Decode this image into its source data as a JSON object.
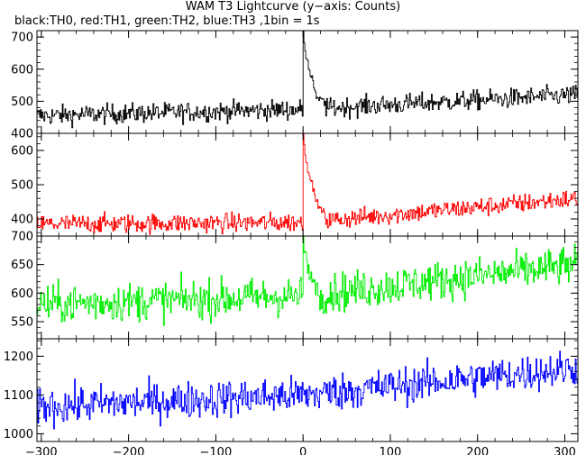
{
  "chart_data": {
    "type": "line",
    "title": "WAM T3 Lightcurve (y−axis: Counts)",
    "subtitle": "black:TH0, red:TH1, green:TH2, blue:TH3 ,1bin = 1s",
    "xlim": [
      -305,
      315
    ],
    "x_ticks": [
      -300,
      -200,
      -100,
      0,
      100,
      200,
      300
    ],
    "x_tick_labels": [
      "−300",
      "−200",
      "−100",
      "0",
      "100",
      "200",
      "300"
    ],
    "panels": [
      {
        "series": "TH0",
        "color": "#000000",
        "ylim": [
          400,
          720
        ],
        "y_ticks": [
          400,
          500,
          600,
          700
        ],
        "trend": [
          [
            -305,
            455
          ],
          [
            0,
            475
          ],
          [
            315,
            520
          ]
        ],
        "noise": 22,
        "peak": {
          "x": 0,
          "value": 720,
          "decay": [
            [
              0,
              720
            ],
            [
              3,
              650
            ],
            [
              8,
              590
            ],
            [
              15,
              520
            ],
            [
              25,
              490
            ]
          ]
        }
      },
      {
        "series": "TH1",
        "color": "#ff0000",
        "ylim": [
          350,
          650
        ],
        "y_ticks": [
          400,
          500,
          600
        ],
        "trend": [
          [
            -305,
            385
          ],
          [
            0,
            390
          ],
          [
            315,
            460
          ]
        ],
        "noise": 20,
        "peak": {
          "x": 0,
          "value": 650,
          "decay": [
            [
              0,
              650
            ],
            [
              3,
              570
            ],
            [
              8,
              520
            ],
            [
              15,
              450
            ],
            [
              25,
              410
            ]
          ]
        }
      },
      {
        "series": "TH2",
        "color": "#00ee00",
        "ylim": [
          520,
          700
        ],
        "y_ticks": [
          550,
          600,
          650,
          700
        ],
        "trend": [
          [
            -305,
            580
          ],
          [
            0,
            595
          ],
          [
            315,
            650
          ]
        ],
        "noise": 24,
        "peak": {
          "x": 0,
          "value": 700,
          "decay": [
            [
              0,
              700
            ],
            [
              5,
              640
            ],
            [
              15,
              610
            ]
          ]
        }
      },
      {
        "series": "TH3",
        "color": "#0000ff",
        "ylim": [
          980,
          1245
        ],
        "y_ticks": [
          1000,
          1100,
          1200
        ],
        "trend": [
          [
            -305,
            1070
          ],
          [
            0,
            1100
          ],
          [
            315,
            1170
          ]
        ],
        "noise": 34,
        "peak": null
      }
    ]
  }
}
